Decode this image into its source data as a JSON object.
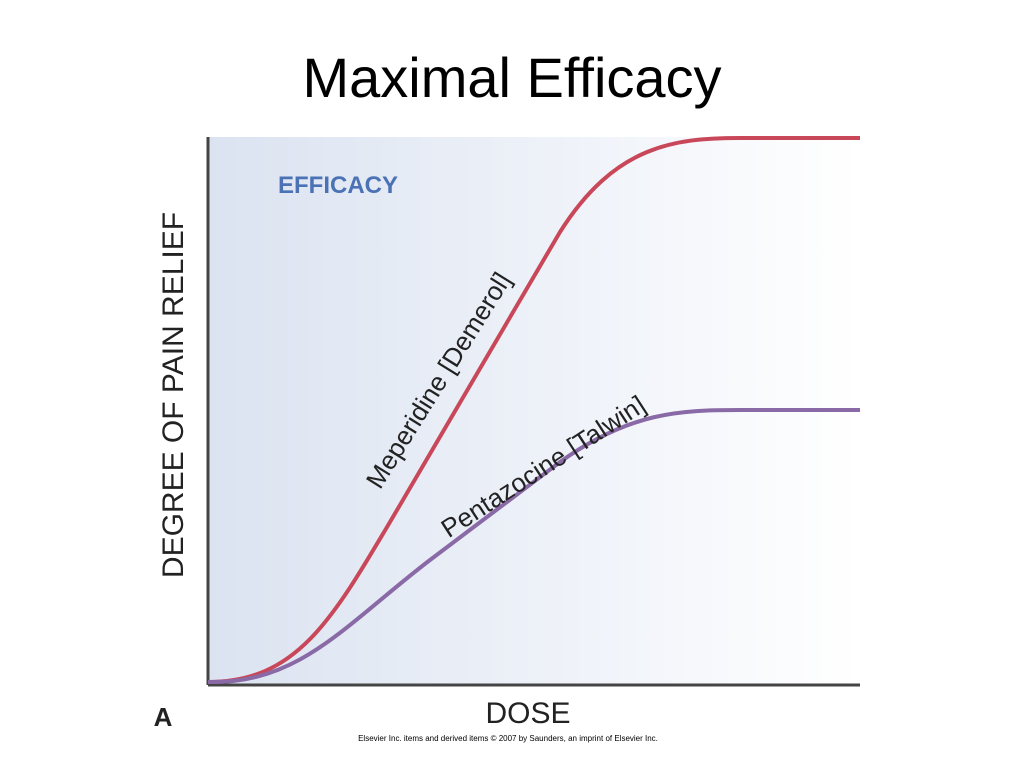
{
  "header": {
    "title": "Maximal Efficacy"
  },
  "diagram": {
    "y_axis_label": "DEGREE OF PAIN RELIEF",
    "x_axis_label": "DOSE",
    "annotation": "EFFICACY",
    "curves": [
      {
        "label": "Meperidine [Demerol]"
      },
      {
        "label": "Pentazocine [Talwin]"
      }
    ],
    "panel_label": "A"
  },
  "footer": {
    "credit": "Elsevier Inc. items and derived items © 2007 by Saunders, an imprint of Elsevier Inc."
  }
}
